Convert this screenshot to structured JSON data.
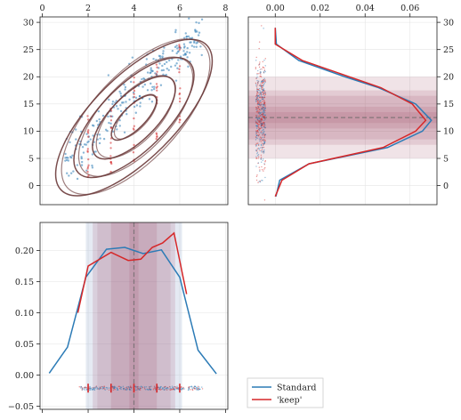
{
  "chart_data": [
    {
      "panel": "joint",
      "type": "scatter",
      "x_ticks": [
        "0",
        "2",
        "4",
        "6",
        "8"
      ],
      "y_ticks": [
        "0",
        "5",
        "10",
        "15",
        "20",
        "25",
        "30"
      ],
      "xlim": [
        -0.1,
        8.1
      ],
      "ylim": [
        -3.5,
        31
      ],
      "x_axis_position": "top",
      "grid": true,
      "contours": {
        "center": [
          4.0,
          12.5
        ],
        "levels": [
          {
            "a": 1.1,
            "b": 0.8
          },
          {
            "a": 2.0,
            "b": 1.6
          },
          {
            "a": 2.9,
            "b": 2.3
          },
          {
            "a": 3.8,
            "b": 2.9
          }
        ],
        "slope": 4.2
      },
      "standard_points": {
        "n": 260,
        "x_range": [
          1.0,
          7.0
        ],
        "slope": 4.0,
        "intercept": 0.8,
        "spread": 2.4
      },
      "keep_x_values": [
        2.0,
        3.0,
        4.0,
        5.0,
        6.0
      ],
      "keep_y_ranges": [
        [
          1.5,
          13.5
        ],
        [
          2.5,
          14.5
        ],
        [
          4.5,
          20.5
        ],
        [
          8.5,
          22.5
        ],
        [
          11.5,
          27.0
        ]
      ],
      "keep_points_per_x": 16
    },
    {
      "panel": "y-marginal",
      "type": "line",
      "x_ticks": [
        "0.00",
        "0.02",
        "0.04",
        "0.06"
      ],
      "y_ticks": [
        "0",
        "5",
        "10",
        "15",
        "20",
        "25",
        "30"
      ],
      "xlim": [
        -0.012,
        0.072
      ],
      "ylim": [
        -3.5,
        31
      ],
      "x_axis_position": "top",
      "y_axis_position": "right",
      "grid": true,
      "y": [
        -2,
        1,
        4,
        7,
        10,
        12,
        15,
        18,
        20,
        23,
        26,
        29
      ],
      "series": [
        {
          "name": "Standard",
          "values": [
            0.0003,
            0.002,
            0.015,
            0.05,
            0.0655,
            0.0695,
            0.0625,
            0.046,
            0.031,
            0.0105,
            0.0005,
            0.0
          ]
        },
        {
          "name": "'keep'",
          "values": [
            0.0,
            0.003,
            0.015,
            0.048,
            0.0625,
            0.067,
            0.061,
            0.047,
            0.033,
            0.012,
            0.0,
            0.0
          ]
        }
      ],
      "mean": 12.5,
      "bands": [
        [
          7.5,
          17.5
        ],
        [
          5.0,
          20.0
        ],
        [
          8.5,
          16.5
        ],
        [
          10.5,
          14.5
        ],
        [
          11.5,
          13.5
        ]
      ],
      "rug": {
        "n": 520,
        "center_x": -0.0065,
        "jitter": 0.0022,
        "y_range": [
          -1.0,
          27.0
        ]
      }
    },
    {
      "panel": "x-marginal",
      "type": "line",
      "x_ticks": [
        "0",
        "2",
        "4",
        "6",
        "8"
      ],
      "y_ticks": [
        "−0.05",
        "0.00",
        "0.05",
        "0.10",
        "0.15",
        "0.20"
      ],
      "xlim": [
        -0.1,
        8.1
      ],
      "ylim": [
        -0.055,
        0.245
      ],
      "grid": true,
      "series": [
        {
          "name": "Standard",
          "x": [
            0.3,
            1.1,
            1.9,
            2.8,
            3.6,
            4.4,
            5.2,
            6.0,
            6.8,
            7.6
          ],
          "values": [
            0.003,
            0.045,
            0.157,
            0.202,
            0.205,
            0.195,
            0.201,
            0.157,
            0.04,
            0.002
          ]
        },
        {
          "name": "'keep'",
          "x": [
            1.55,
            2.0,
            3.0,
            3.75,
            4.3,
            4.8,
            5.25,
            5.75,
            6.3
          ],
          "values": [
            0.1,
            0.175,
            0.197,
            0.184,
            0.186,
            0.205,
            0.212,
            0.228,
            0.13
          ]
        }
      ],
      "mean": 4.0,
      "bands": [
        [
          2.4,
          5.6
        ],
        [
          1.9,
          6.1
        ],
        [
          3.0,
          5.0
        ],
        [
          3.8,
          4.2
        ],
        [
          2.2,
          5.8
        ]
      ],
      "rug": {
        "n": 330,
        "y_center": -0.021,
        "jitter": 0.003,
        "x_range": [
          1.6,
          7.0
        ],
        "keep_marks_x": [
          2.0,
          3.0,
          4.0,
          5.0,
          6.0
        ]
      }
    }
  ],
  "legend": {
    "position": "lower-left of empty panel",
    "items": [
      {
        "label": "Standard",
        "color": "#2c7bb6"
      },
      {
        "label": "'keep'",
        "color": "#d62728"
      }
    ]
  },
  "colors": {
    "standard": "#2c7bb6",
    "keep": "#d62728",
    "contour": "#6b3a3a",
    "band": "#a0506a",
    "band_blue": "#a8b8d8"
  }
}
